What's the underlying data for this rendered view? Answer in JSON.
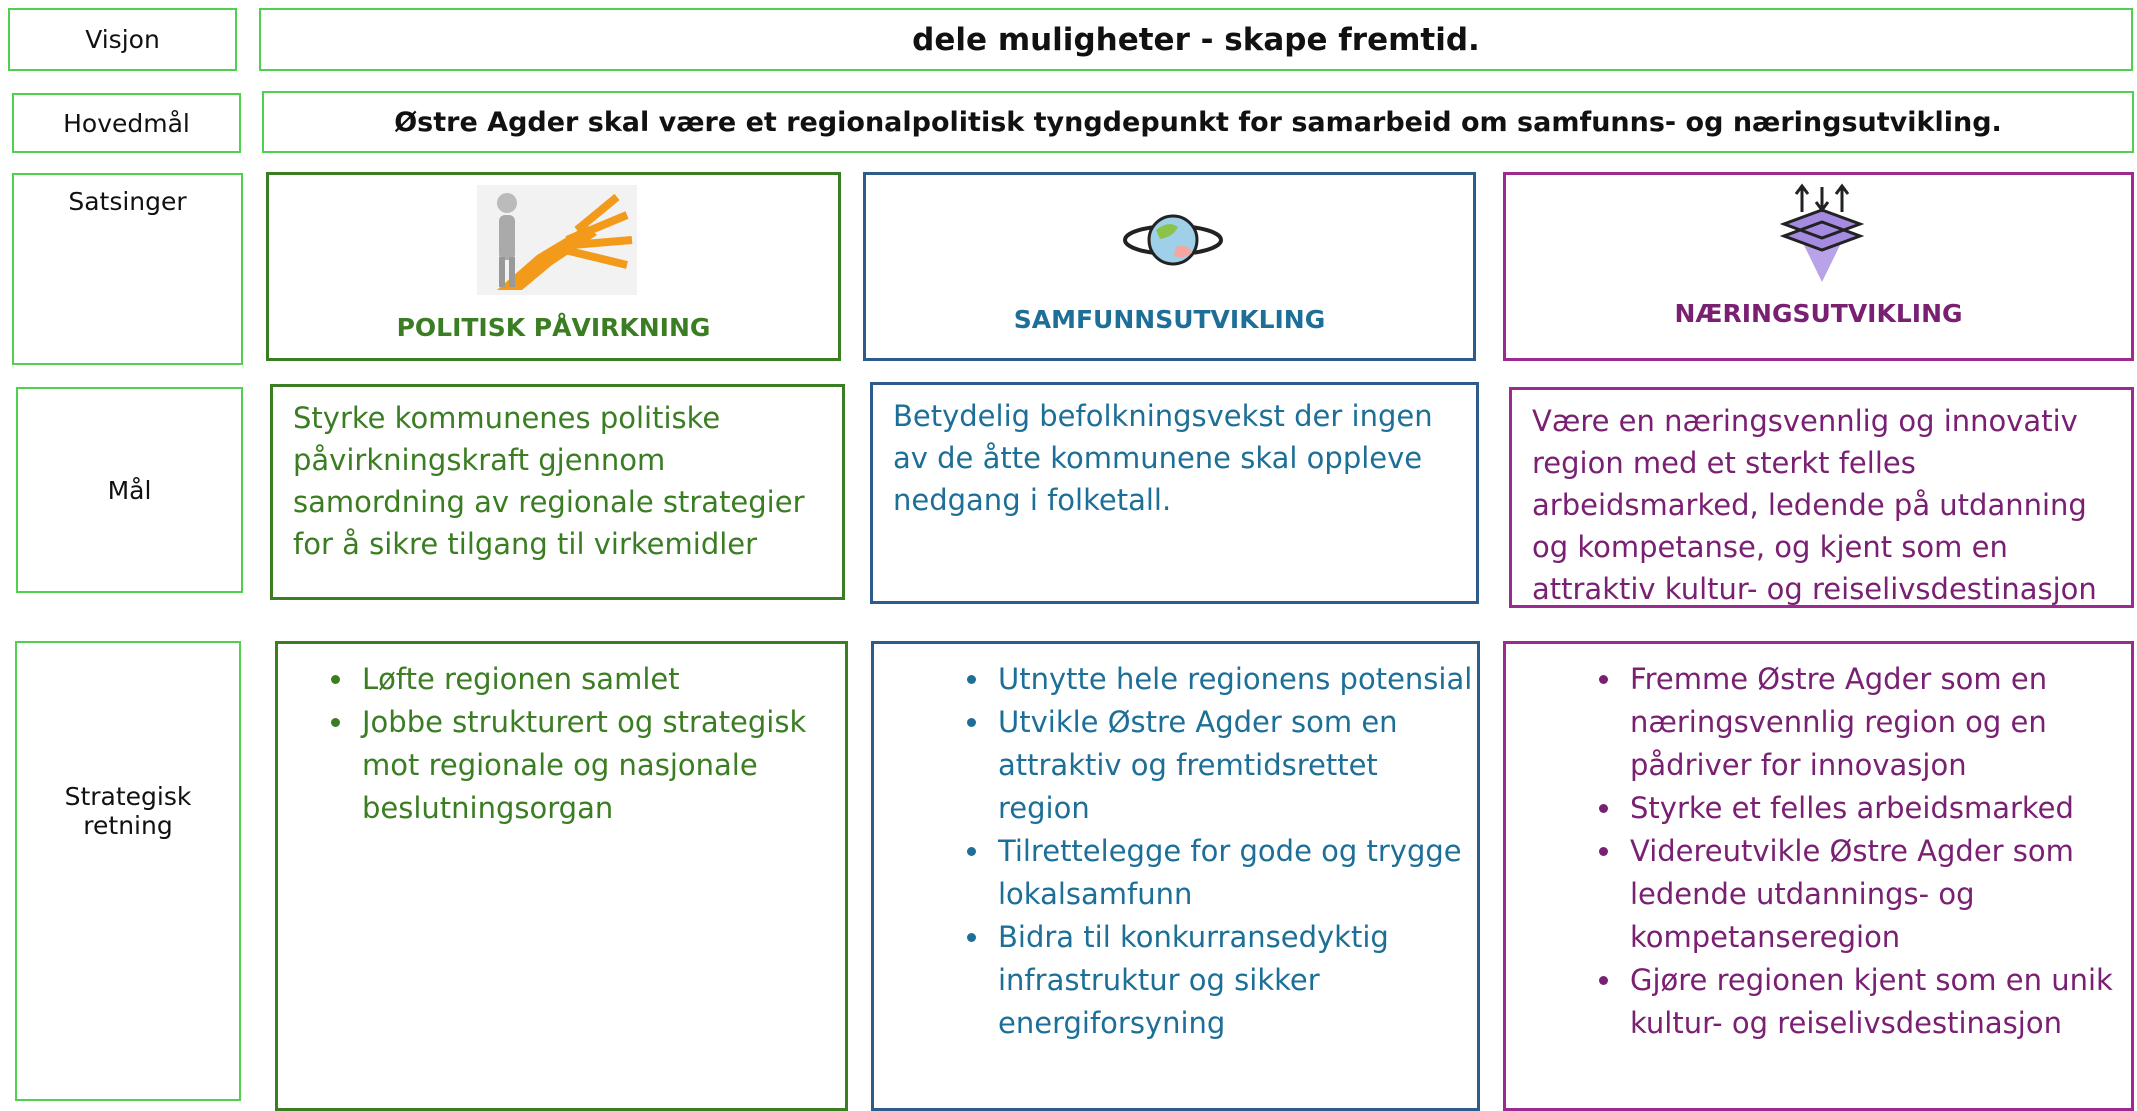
{
  "row_labels": {
    "vision": "Visjon",
    "main_goal": "Hovedmål",
    "focus": "Satsinger",
    "goals": "Mål",
    "direction": "Strategisk retning"
  },
  "vision": "dele muligheter - skape fremtid.",
  "main_goal": "Østre Agder skal være et regionalpolitisk tyngdepunkt for samarbeid om samfunns- og næringsutvikling.",
  "focus_areas": [
    {
      "title": "POLITISK PÅVIRKNING",
      "goal": "Styrke kommunenes politiske påvirkningskraft gjennom samordning av regionale strategier for å sikre tilgang til virkemidler",
      "directions": [
        "Løfte regionen samlet",
        "Jobbe strukturert og strategisk mot regionale og nasjonale beslutningsorgan"
      ]
    },
    {
      "title": "SAMFUNNSUTVIKLING",
      "goal": "Betydelig befolkningsvekst der ingen av de åtte kommunene skal oppleve nedgang i folketall.",
      "directions": [
        "Utnytte hele regionens potensial",
        "Utvikle Østre Agder som en attraktiv og fremtidsrettet region",
        "Tilrettelegge for gode og trygge lokalsamfunn",
        "Bidra til konkurransedyktig infrastruktur og sikker energiforsyning"
      ]
    },
    {
      "title": "NÆRINGSUTVIKLING",
      "goal": "Være en næringsvennlig og innovativ region med et sterkt felles arbeidsmarked, ledende på utdanning og kompetanse, og kjent som en attraktiv kultur- og reiselivsdestinasjon",
      "directions": [
        "Fremme Østre Agder som en næringsvennlig region og en pådriver for innovasjon",
        "Styrke et felles arbeidsmarked",
        "Videreutvikle Østre Agder som ledende utdannings- og kompetanseregion",
        "Gjøre regionen kjent som en unik kultur- og reiselivsdestinasjon"
      ]
    }
  ]
}
